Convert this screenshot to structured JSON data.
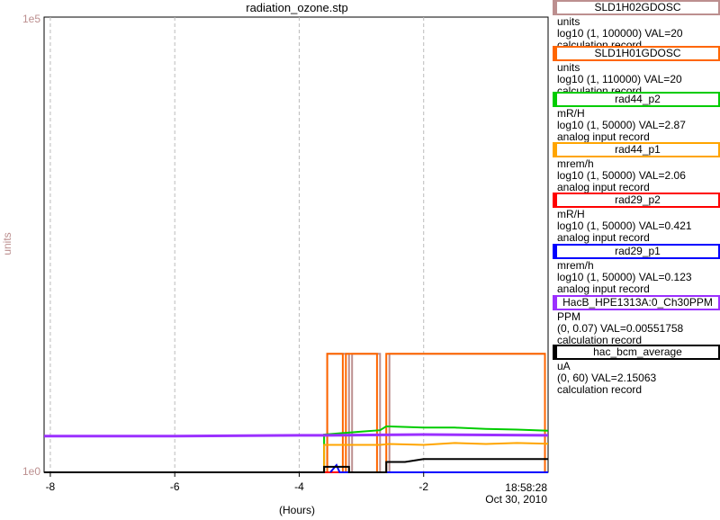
{
  "chart_data": {
    "type": "line",
    "title": "radiation_ozone.stp",
    "xlabel": "(Hours)",
    "ylabel": "units",
    "x_ticks": [
      -8,
      -6,
      -4,
      -2
    ],
    "xlim": [
      -8.1,
      0.0
    ],
    "y_scale": "log",
    "ylim": [
      1,
      100000
    ],
    "y_top_label": "1e5",
    "y_bottom_label": "1e0",
    "end_time": "18:58:28",
    "end_date": "Oct 30, 2010",
    "grid": true,
    "series": [
      {
        "name": "SLD1H02GDOSC",
        "color": "#bc8f8f",
        "points": [
          [
            -8.1,
            1
          ],
          [
            -3.55,
            1
          ],
          [
            -3.55,
            20
          ],
          [
            -3.2,
            20
          ],
          [
            -3.2,
            1
          ],
          [
            -3.15,
            1
          ],
          [
            -3.15,
            20
          ],
          [
            -2.7,
            20
          ],
          [
            -2.7,
            1
          ],
          [
            -2.55,
            1
          ],
          [
            -2.55,
            20
          ],
          [
            -0.05,
            20
          ],
          [
            -0.05,
            1
          ],
          [
            0,
            1
          ]
        ]
      },
      {
        "name": "SLD1H01GDOSC",
        "color": "#ff6600",
        "points": [
          [
            -8.1,
            1
          ],
          [
            -3.55,
            1
          ],
          [
            -3.55,
            20
          ],
          [
            -3.3,
            20
          ],
          [
            -3.3,
            1
          ],
          [
            -3.25,
            1
          ],
          [
            -3.25,
            20
          ],
          [
            -2.75,
            20
          ],
          [
            -2.75,
            1
          ],
          [
            -2.6,
            1
          ],
          [
            -2.6,
            20
          ],
          [
            -1.2,
            20
          ],
          [
            -1.2,
            20
          ],
          [
            -0.05,
            20
          ],
          [
            -0.05,
            1
          ],
          [
            0,
            1
          ]
        ]
      },
      {
        "name": "rad44_p2",
        "color": "#00cc00",
        "points": [
          [
            -3.6,
            1
          ],
          [
            -3.6,
            2.6
          ],
          [
            -3.0,
            2.8
          ],
          [
            -2.7,
            2.9
          ],
          [
            -2.6,
            3.2
          ],
          [
            -2.0,
            3.1
          ],
          [
            -1.5,
            3.1
          ],
          [
            -1.0,
            3.0
          ],
          [
            -0.5,
            2.95
          ],
          [
            0,
            2.87
          ]
        ]
      },
      {
        "name": "rad44_p1",
        "color": "#ffa500",
        "points": [
          [
            -3.6,
            1
          ],
          [
            -3.6,
            2.0
          ],
          [
            -3.0,
            2.0
          ],
          [
            -2.7,
            2.0
          ],
          [
            -2.55,
            2.05
          ],
          [
            -2.0,
            2.0
          ],
          [
            -1.5,
            2.1
          ],
          [
            -1.0,
            2.05
          ],
          [
            -0.5,
            2.1
          ],
          [
            0,
            2.06
          ]
        ]
      },
      {
        "name": "rad29_p2",
        "color": "#ff0000",
        "points": [
          [
            -8.1,
            1
          ],
          [
            0,
            1
          ]
        ]
      },
      {
        "name": "rad29_p1",
        "color": "#0000ff",
        "points": [
          [
            -3.5,
            1
          ],
          [
            -3.4,
            1.2
          ],
          [
            -3.35,
            1
          ],
          [
            0,
            1
          ]
        ]
      },
      {
        "name": "HacB_HPE1313A:0_Ch30PPM",
        "color": "#9b30ff",
        "points": [
          [
            -8.1,
            2.5
          ],
          [
            -6,
            2.5
          ],
          [
            -4,
            2.55
          ],
          [
            -3.5,
            2.55
          ],
          [
            -2,
            2.6
          ],
          [
            0,
            2.55
          ]
        ]
      },
      {
        "name": "hac_bcm_average",
        "color": "#000000",
        "points": [
          [
            -8.1,
            1
          ],
          [
            -3.6,
            1
          ],
          [
            -3.6,
            1.15
          ],
          [
            -3.2,
            1.15
          ],
          [
            -3.2,
            1
          ],
          [
            -2.6,
            1
          ],
          [
            -2.6,
            1.3
          ],
          [
            -2.3,
            1.3
          ],
          [
            -2.0,
            1.4
          ],
          [
            -1.0,
            1.4
          ],
          [
            0,
            1.4
          ]
        ]
      }
    ]
  },
  "legend": [
    {
      "name": "SLD1H02GDOSC",
      "color": "#bc8f8f",
      "units": "units",
      "range": "log10 (1, 100000) VAL=20",
      "record": "calculation record"
    },
    {
      "name": "SLD1H01GDOSC",
      "color": "#ff6600",
      "units": "units",
      "range": "log10 (1, 110000) VAL=20",
      "record": "calculation record"
    },
    {
      "name": "rad44_p2",
      "color": "#00cc00",
      "units": "mR/H",
      "range": "log10 (1, 50000) VAL=2.87",
      "record": "analog input record"
    },
    {
      "name": "rad44_p1",
      "color": "#ffa500",
      "units": "mrem/h",
      "range": "log10 (1, 50000) VAL=2.06",
      "record": "analog input record"
    },
    {
      "name": "rad29_p2",
      "color": "#ff0000",
      "units": "mR/H",
      "range": "log10 (1, 50000) VAL=0.421",
      "record": "analog input record"
    },
    {
      "name": "rad29_p1",
      "color": "#0000ff",
      "units": "mrem/h",
      "range": "log10 (1, 50000) VAL=0.123",
      "record": "analog input record"
    },
    {
      "name": "HacB_HPE1313A:0_Ch30PPM",
      "color": "#9b30ff",
      "units": "PPM",
      "range": "(0, 0.07) VAL=0.00551758",
      "record": "calculation record"
    },
    {
      "name": "hac_bcm_average",
      "color": "#000000",
      "units": "uA",
      "range": "(0, 60) VAL=2.15063",
      "record": "calculation record"
    }
  ]
}
